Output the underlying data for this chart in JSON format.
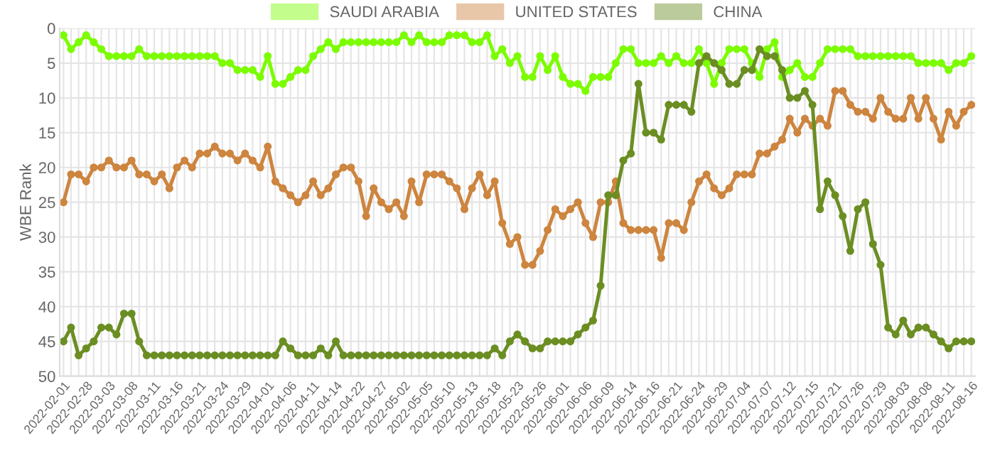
{
  "chart_data": {
    "type": "line",
    "ylabel": "WBE Rank",
    "categories": [
      "2022-02-01",
      null,
      null,
      "2022-02-28",
      null,
      null,
      "2022-03-03",
      null,
      null,
      "2022-03-08",
      null,
      null,
      "2022-03-11",
      null,
      null,
      "2022-03-16",
      null,
      null,
      "2022-03-21",
      null,
      null,
      "2022-03-24",
      null,
      null,
      "2022-03-29",
      null,
      null,
      "2022-04-01",
      null,
      null,
      "2022-04-06",
      null,
      null,
      "2022-04-11",
      null,
      null,
      "2022-04-14",
      null,
      null,
      "2022-04-22",
      null,
      null,
      "2022-04-27",
      null,
      null,
      "2022-05-02",
      null,
      null,
      "2022-05-05",
      null,
      null,
      "2022-05-10",
      null,
      null,
      "2022-05-13",
      null,
      null,
      "2022-05-18",
      null,
      null,
      "2022-05-23",
      null,
      null,
      "2022-05-26",
      null,
      null,
      "2022-06-01",
      null,
      null,
      "2022-06-06",
      null,
      null,
      "2022-06-09",
      null,
      null,
      "2022-06-14",
      null,
      null,
      "2022-06-16",
      null,
      null,
      "2022-06-21",
      null,
      null,
      "2022-06-24",
      null,
      null,
      "2022-06-29",
      null,
      null,
      "2022-07-04",
      null,
      null,
      "2022-07-07",
      null,
      null,
      "2022-07-12",
      null,
      null,
      "2022-07-15",
      null,
      null,
      "2022-07-21",
      null,
      null,
      "2022-07-26",
      null,
      null,
      "2022-07-29",
      null,
      null,
      "2022-08-03",
      null,
      null,
      "2022-08-08",
      null,
      null,
      "2022-08-11",
      null,
      null,
      "2022-08-16"
    ],
    "series": [
      {
        "name": "SAUDI ARABIA",
        "color": "#7cfc00",
        "values": [
          1,
          3,
          2,
          1,
          2,
          3,
          4,
          4,
          4,
          4,
          3,
          4,
          4,
          4,
          4,
          4,
          4,
          4,
          4,
          4,
          4,
          5,
          5,
          6,
          6,
          6,
          7,
          4,
          8,
          8,
          7,
          6,
          6,
          4,
          3,
          2,
          3,
          2,
          2,
          2,
          2,
          2,
          2,
          2,
          2,
          1,
          2,
          1,
          2,
          2,
          2,
          1,
          1,
          1,
          2,
          2,
          1,
          4,
          3,
          5,
          4,
          7,
          7,
          4,
          6,
          4,
          7,
          8,
          8,
          9,
          7,
          7,
          7,
          5,
          3,
          3,
          5,
          5,
          5,
          4,
          5,
          4,
          5,
          5,
          3,
          5,
          8,
          5,
          3,
          3,
          3,
          5,
          7,
          3,
          2,
          7,
          6,
          5,
          7,
          7,
          5,
          3,
          3,
          3,
          3,
          4,
          4,
          4,
          4,
          4,
          4,
          4,
          4,
          5,
          5,
          5,
          5,
          6,
          5,
          5,
          4
        ]
      },
      {
        "name": "UNITED STATES",
        "color": "#cd853f",
        "values": [
          25,
          21,
          21,
          22,
          20,
          20,
          19,
          20,
          20,
          19,
          21,
          21,
          22,
          21,
          23,
          20,
          19,
          20,
          18,
          18,
          17,
          18,
          18,
          19,
          18,
          19,
          20,
          17,
          22,
          23,
          24,
          25,
          24,
          22,
          24,
          23,
          21,
          20,
          20,
          22,
          27,
          23,
          25,
          26,
          25,
          27,
          22,
          25,
          21,
          21,
          21,
          22,
          23,
          26,
          23,
          21,
          24,
          22,
          28,
          31,
          30,
          34,
          34,
          32,
          29,
          26,
          27,
          26,
          25,
          28,
          30,
          25,
          25,
          22,
          28,
          29,
          29,
          29,
          29,
          33,
          28,
          28,
          29,
          25,
          22,
          21,
          23,
          24,
          23,
          21,
          21,
          21,
          18,
          18,
          17,
          16,
          13,
          15,
          13,
          14,
          13,
          14,
          9,
          9,
          11,
          12,
          12,
          13,
          10,
          12,
          13,
          13,
          10,
          13,
          10,
          13,
          16,
          12,
          14,
          12,
          11
        ]
      },
      {
        "name": "CHINA",
        "color": "#6b8e23",
        "values": [
          45,
          43,
          47,
          46,
          45,
          43,
          43,
          44,
          41,
          41,
          45,
          47,
          47,
          47,
          47,
          47,
          47,
          47,
          47,
          47,
          47,
          47,
          47,
          47,
          47,
          47,
          47,
          47,
          47,
          45,
          46,
          47,
          47,
          47,
          46,
          47,
          45,
          47,
          47,
          47,
          47,
          47,
          47,
          47,
          47,
          47,
          47,
          47,
          47,
          47,
          47,
          47,
          47,
          47,
          47,
          47,
          47,
          46,
          47,
          45,
          44,
          45,
          46,
          46,
          45,
          45,
          45,
          45,
          44,
          43,
          42,
          37,
          24,
          24,
          19,
          18,
          8,
          15,
          15,
          16,
          11,
          11,
          11,
          12,
          5,
          4,
          5,
          6,
          8,
          8,
          6,
          6,
          3,
          4,
          4,
          6,
          10,
          10,
          9,
          11,
          26,
          22,
          24,
          27,
          32,
          26,
          25,
          31,
          34,
          43,
          44,
          42,
          44,
          43,
          43,
          44,
          45,
          46,
          45,
          45,
          45
        ]
      }
    ],
    "ylim": [
      50,
      0
    ],
    "yticks": [
      0,
      5,
      10,
      15,
      20,
      25,
      30,
      35,
      40,
      45,
      50
    ],
    "grid": true,
    "legend": "top",
    "marker": "circle",
    "line_style": "solid"
  }
}
